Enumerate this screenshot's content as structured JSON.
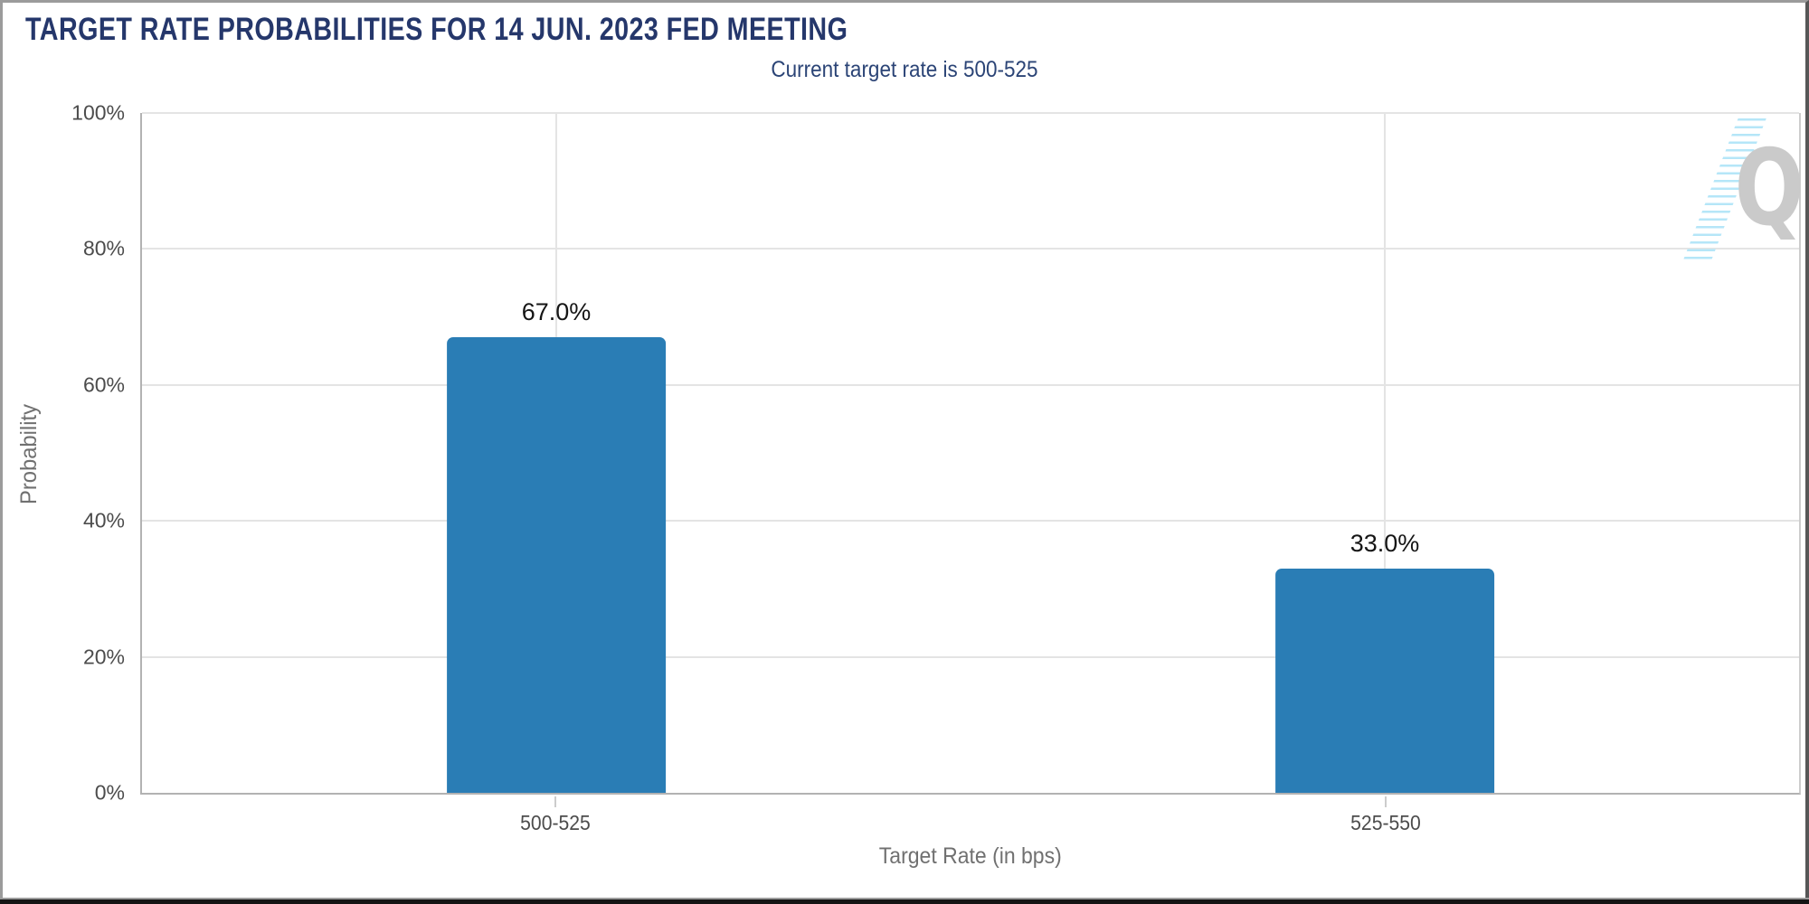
{
  "header": {
    "title": "TARGET RATE PROBABILITIES FOR 14 JUN. 2023 FED MEETING",
    "subtitle": "Current target rate is 500-525"
  },
  "chart_data": {
    "type": "bar",
    "title": "TARGET RATE PROBABILITIES FOR 14 JUN. 2023 FED MEETING",
    "subtitle": "Current target rate is 500-525",
    "categories": [
      "500-525",
      "525-550"
    ],
    "values": [
      67.0,
      33.0
    ],
    "value_labels": [
      "67.0%",
      "33.0%"
    ],
    "xlabel": "Target Rate (in bps)",
    "ylabel": "Probability",
    "ylim": [
      0,
      100
    ],
    "yticks": [
      0,
      20,
      40,
      60,
      80,
      100
    ],
    "ytick_labels": [
      "0%",
      "20%",
      "40%",
      "60%",
      "80%",
      "100%"
    ],
    "grid": true,
    "legend": false,
    "bar_color": "#2A7DB5",
    "bar_width_frac": 0.132
  },
  "branding": {
    "logo_letter": "Q",
    "logo_color": "#CACACA",
    "stripe_color": "#B5E6F8"
  },
  "colors": {
    "title": "#25376B",
    "subtitle": "#2B4476",
    "tick_label": "#4C4C4C",
    "axis_title": "#707070",
    "gridline": "#E4E4E4",
    "axis_line": "#B2B2B2",
    "value_label": "#151515",
    "frame_border": "#9B9B9B"
  }
}
